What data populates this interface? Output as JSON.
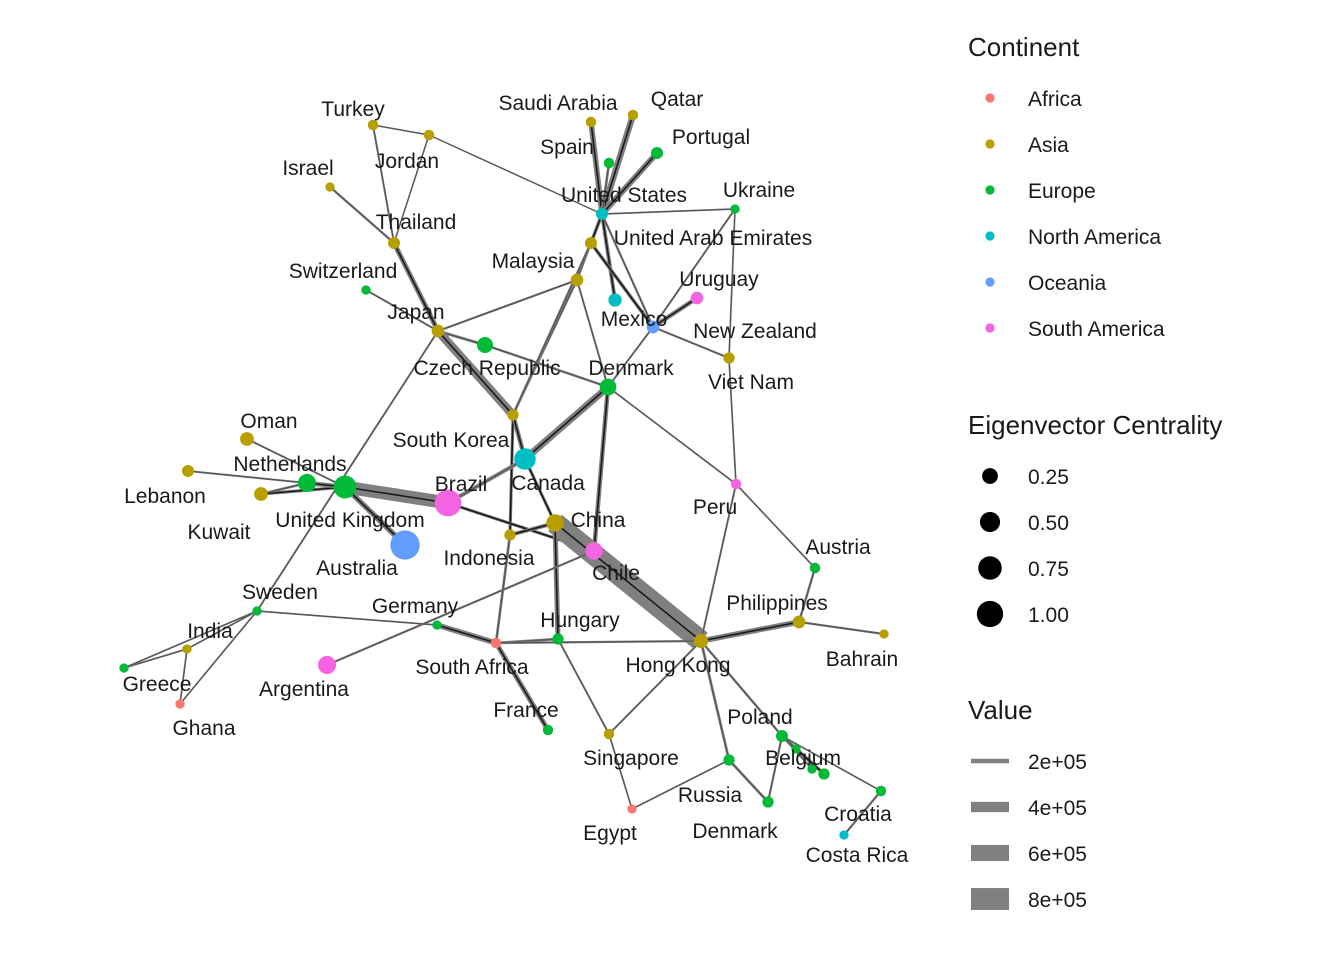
{
  "colors": {
    "Africa": "#F8766D",
    "Asia": "#B79F00",
    "Europe": "#00BA38",
    "North America": "#00BFC4",
    "Oceania": "#619CFF",
    "South America": "#F564E3"
  },
  "legend": {
    "continent": {
      "title": "Continent",
      "items": [
        "Africa",
        "Asia",
        "Europe",
        "North America",
        "Oceania",
        "South America"
      ]
    },
    "centrality": {
      "title": "Eigenvector Centrality",
      "items": [
        "0.25",
        "0.50",
        "0.75",
        "1.00"
      ]
    },
    "value": {
      "title": "Value",
      "items": [
        "2e+05",
        "4e+05",
        "6e+05",
        "8e+05"
      ]
    }
  },
  "nodes": [
    {
      "id": "turkey",
      "label": "Turkey",
      "continent": "Asia",
      "c": 0.02
    },
    {
      "id": "jordan",
      "label": "Jordan",
      "continent": "Asia",
      "c": 0.02
    },
    {
      "id": "israel",
      "label": "Israel",
      "continent": "Asia",
      "c": 0.01
    },
    {
      "id": "thailand",
      "label": "Thailand",
      "continent": "Asia",
      "c": 0.04
    },
    {
      "id": "switzerland",
      "label": "Switzerland",
      "continent": "Europe",
      "c": 0.01
    },
    {
      "id": "japan",
      "label": "Japan",
      "continent": "Asia",
      "c": 0.05
    },
    {
      "id": "czech",
      "label": "Czech Republic",
      "continent": "Europe",
      "c": 0.12
    },
    {
      "id": "malaysia",
      "label": "Malaysia",
      "continent": "Asia",
      "c": 0.05
    },
    {
      "id": "saudi",
      "label": "Saudi Arabia",
      "continent": "Asia",
      "c": 0.02
    },
    {
      "id": "qatar",
      "label": "Qatar",
      "continent": "Asia",
      "c": 0.02
    },
    {
      "id": "spain",
      "label": "Spain",
      "continent": "Europe",
      "c": 0.02
    },
    {
      "id": "portugal",
      "label": "Portugal",
      "continent": "Europe",
      "c": 0.04
    },
    {
      "id": "usa",
      "label": "United States",
      "continent": "North America",
      "c": 0.04
    },
    {
      "id": "uae",
      "label": "United Arab Emirates",
      "continent": "Asia",
      "c": 0.04
    },
    {
      "id": "ukraine",
      "label": "Ukraine",
      "continent": "Europe",
      "c": 0.01
    },
    {
      "id": "uruguay",
      "label": "Uruguay",
      "continent": "South America",
      "c": 0.05
    },
    {
      "id": "mexico",
      "label": "Mexico",
      "continent": "North America",
      "c": 0.06
    },
    {
      "id": "newzealand",
      "label": "New Zealand",
      "continent": "Oceania",
      "c": 0.05
    },
    {
      "id": "vietnam",
      "label": "Viet Nam",
      "continent": "Asia",
      "c": 0.03
    },
    {
      "id": "denmark1",
      "label": "Denmark",
      "continent": "Europe",
      "c": 0.14
    },
    {
      "id": "southkorea",
      "label": "South Korea",
      "continent": "Asia",
      "c": 0.03
    },
    {
      "id": "canada",
      "label": "Canada",
      "continent": "North America",
      "c": 0.3
    },
    {
      "id": "oman",
      "label": "Oman",
      "continent": "Asia",
      "c": 0.07
    },
    {
      "id": "netherlands",
      "label": "Netherlands",
      "continent": "Europe",
      "c": 0.18
    },
    {
      "id": "lebanon",
      "label": "Lebanon",
      "continent": "Asia",
      "c": 0.04
    },
    {
      "id": "kuwait",
      "label": "Kuwait",
      "continent": "Asia",
      "c": 0.07
    },
    {
      "id": "uk",
      "label": "United Kingdom",
      "continent": "Europe",
      "c": 0.36
    },
    {
      "id": "brazil",
      "label": "Brazil",
      "continent": "South America",
      "c": 0.55
    },
    {
      "id": "australia",
      "label": "Australia",
      "continent": "Oceania",
      "c": 0.7
    },
    {
      "id": "china",
      "label": "China",
      "continent": "Asia",
      "c": 0.16
    },
    {
      "id": "chile",
      "label": "Chile",
      "continent": "South America",
      "c": 0.16
    },
    {
      "id": "indonesia",
      "label": "Indonesia",
      "continent": "Asia",
      "c": 0.03
    },
    {
      "id": "peru",
      "label": "Peru",
      "continent": "South America",
      "c": 0.02
    },
    {
      "id": "austria",
      "label": "Austria",
      "continent": "Europe",
      "c": 0.02
    },
    {
      "id": "sweden",
      "label": "Sweden",
      "continent": "Europe",
      "c": 0.01
    },
    {
      "id": "india",
      "label": "India",
      "continent": "Asia",
      "c": 0.01
    },
    {
      "id": "greece",
      "label": "Greece",
      "continent": "Europe",
      "c": 0.01
    },
    {
      "id": "ghana",
      "label": "Ghana",
      "continent": "Africa",
      "c": 0.01
    },
    {
      "id": "argentina",
      "label": "Argentina",
      "continent": "South America",
      "c": 0.18
    },
    {
      "id": "germany",
      "label": "Germany",
      "continent": "Europe",
      "c": 0.01
    },
    {
      "id": "hungary",
      "label": "Hungary",
      "continent": "Europe",
      "c": 0.03
    },
    {
      "id": "southafrica",
      "label": "South Africa",
      "continent": "Africa",
      "c": 0.02
    },
    {
      "id": "philippines",
      "label": "Philippines",
      "continent": "Asia",
      "c": 0.05
    },
    {
      "id": "bahrain",
      "label": "Bahrain",
      "continent": "Asia",
      "c": 0.01
    },
    {
      "id": "hongkong",
      "label": "Hong Kong",
      "continent": "Asia",
      "c": 0.08
    },
    {
      "id": "france",
      "label": "France",
      "continent": "Europe",
      "c": 0.02
    },
    {
      "id": "singapore",
      "label": "Singapore",
      "continent": "Asia",
      "c": 0.02
    },
    {
      "id": "poland",
      "label": "Poland",
      "continent": "Europe",
      "c": 0.04
    },
    {
      "id": "belgium",
      "label": "Belgium",
      "continent": "Europe",
      "c": 0.03
    },
    {
      "id": "russia",
      "label": "Russia",
      "continent": "Europe",
      "c": 0.03
    },
    {
      "id": "denmark2",
      "label": "Denmark",
      "continent": "Europe",
      "c": 0.03
    },
    {
      "id": "egypt",
      "label": "Egypt",
      "continent": "Africa",
      "c": 0.01
    },
    {
      "id": "croatia",
      "label": "Croatia",
      "continent": "Europe",
      "c": 0.02
    },
    {
      "id": "costarica",
      "label": "Costa Rica",
      "continent": "North America",
      "c": 0.01
    },
    {
      "id": "n_bel2",
      "label": "",
      "continent": "Europe",
      "c": 0.01
    },
    {
      "id": "n_bel3",
      "label": "",
      "continent": "Europe",
      "c": 0.01
    }
  ],
  "edges": [
    {
      "from": "turkey",
      "to": "jordan",
      "v": 5000
    },
    {
      "from": "turkey",
      "to": "thailand",
      "v": 8000
    },
    {
      "from": "jordan",
      "to": "usa",
      "v": 4000
    },
    {
      "from": "jordan",
      "to": "thailand",
      "v": 5000
    },
    {
      "from": "israel",
      "to": "thailand",
      "v": 12000
    },
    {
      "from": "thailand",
      "to": "japan",
      "v": 50000
    },
    {
      "from": "switzerland",
      "to": "japan",
      "v": 8000
    },
    {
      "from": "japan",
      "to": "czech",
      "v": 15000
    },
    {
      "from": "japan",
      "to": "southkorea",
      "v": 150000
    },
    {
      "from": "japan",
      "to": "malaysia",
      "v": 10000
    },
    {
      "from": "japan",
      "to": "sweden",
      "v": 8000
    },
    {
      "from": "czech",
      "to": "denmark1",
      "v": 12000
    },
    {
      "from": "malaysia",
      "to": "uae",
      "v": 10000
    },
    {
      "from": "malaysia",
      "to": "southkorea",
      "v": 10000
    },
    {
      "from": "malaysia",
      "to": "denmark1",
      "v": 8000
    },
    {
      "from": "saudi",
      "to": "usa",
      "v": 60000
    },
    {
      "from": "qatar",
      "to": "usa",
      "v": 80000
    },
    {
      "from": "spain",
      "to": "usa",
      "v": 15000
    },
    {
      "from": "portugal",
      "to": "usa",
      "v": 70000
    },
    {
      "from": "usa",
      "to": "uae",
      "v": 25000
    },
    {
      "from": "usa",
      "to": "ukraine",
      "v": 6000
    },
    {
      "from": "usa",
      "to": "mexico",
      "v": 30000
    },
    {
      "from": "usa",
      "to": "newzealand",
      "v": 10000
    },
    {
      "from": "uae",
      "to": "newzealand",
      "v": 25000
    },
    {
      "from": "uae",
      "to": "southkorea",
      "v": 15000
    },
    {
      "from": "ukraine",
      "to": "newzealand",
      "v": 8000
    },
    {
      "from": "ukraine",
      "to": "vietnam",
      "v": 6000
    },
    {
      "from": "uruguay",
      "to": "newzealand",
      "v": 40000
    },
    {
      "from": "newzealand",
      "to": "vietnam",
      "v": 10000
    },
    {
      "from": "newzealand",
      "to": "denmark1",
      "v": 8000
    },
    {
      "from": "vietnam",
      "to": "peru",
      "v": 6000
    },
    {
      "from": "denmark1",
      "to": "canada",
      "v": 100000
    },
    {
      "from": "denmark1",
      "to": "chile",
      "v": 40000
    },
    {
      "from": "denmark1",
      "to": "peru",
      "v": 6000
    },
    {
      "from": "southkorea",
      "to": "indonesia",
      "v": 20000
    },
    {
      "from": "southkorea",
      "to": "canada",
      "v": 40000
    },
    {
      "from": "canada",
      "to": "brazil",
      "v": 30000
    },
    {
      "from": "canada",
      "to": "china",
      "v": 20000
    },
    {
      "from": "oman",
      "to": "uk",
      "v": 8000
    },
    {
      "from": "lebanon",
      "to": "netherlands",
      "v": 8000
    },
    {
      "from": "kuwait",
      "to": "netherlands",
      "v": 12000
    },
    {
      "from": "kuwait",
      "to": "uk",
      "v": 20000
    },
    {
      "from": "netherlands",
      "to": "uk",
      "v": 40000
    },
    {
      "from": "uk",
      "to": "brazil",
      "v": 330000
    },
    {
      "from": "uk",
      "to": "australia",
      "v": 60000
    },
    {
      "from": "brazil",
      "to": "canada",
      "v": 15000
    },
    {
      "from": "brazil",
      "to": "chile",
      "v": 20000
    },
    {
      "from": "china",
      "to": "chile",
      "v": 40000
    },
    {
      "from": "china",
      "to": "hongkong",
      "v": 900000
    },
    {
      "from": "china",
      "to": "indonesia",
      "v": 30000
    },
    {
      "from": "china",
      "to": "hungary",
      "v": 50000
    },
    {
      "from": "chile",
      "to": "argentina",
      "v": 10000
    },
    {
      "from": "indonesia",
      "to": "southafrica",
      "v": 15000
    },
    {
      "from": "peru",
      "to": "austria",
      "v": 6000
    },
    {
      "from": "peru",
      "to": "hongkong",
      "v": 8000
    },
    {
      "from": "austria",
      "to": "philippines",
      "v": 12000
    },
    {
      "from": "philippines",
      "to": "bahrain",
      "v": 10000
    },
    {
      "from": "philippines",
      "to": "hongkong",
      "v": 60000
    },
    {
      "from": "sweden",
      "to": "india",
      "v": 6000
    },
    {
      "from": "sweden",
      "to": "greece",
      "v": 6000
    },
    {
      "from": "sweden",
      "to": "ghana",
      "v": 6000
    },
    {
      "from": "sweden",
      "to": "germany",
      "v": 6000
    },
    {
      "from": "india",
      "to": "greece",
      "v": 6000
    },
    {
      "from": "india",
      "to": "ghana",
      "v": 6000
    },
    {
      "from": "germany",
      "to": "southafrica",
      "v": 60000
    },
    {
      "from": "southafrica",
      "to": "hungary",
      "v": 15000
    },
    {
      "from": "southafrica",
      "to": "france",
      "v": 50000
    },
    {
      "from": "southafrica",
      "to": "hongkong",
      "v": 10000
    },
    {
      "from": "hungary",
      "to": "singapore",
      "v": 8000
    },
    {
      "from": "singapore",
      "to": "hongkong",
      "v": 8000
    },
    {
      "from": "singapore",
      "to": "egypt",
      "v": 6000
    },
    {
      "from": "hongkong",
      "to": "russia",
      "v": 15000
    },
    {
      "from": "hongkong",
      "to": "poland",
      "v": 12000
    },
    {
      "from": "poland",
      "to": "belgium",
      "v": 25000
    },
    {
      "from": "poland",
      "to": "n_bel2",
      "v": 8000
    },
    {
      "from": "poland",
      "to": "n_bel3",
      "v": 8000
    },
    {
      "from": "poland",
      "to": "denmark2",
      "v": 10000
    },
    {
      "from": "poland",
      "to": "croatia",
      "v": 6000
    },
    {
      "from": "croatia",
      "to": "costarica",
      "v": 10000
    },
    {
      "from": "russia",
      "to": "denmark2",
      "v": 15000
    },
    {
      "from": "russia",
      "to": "egypt",
      "v": 6000
    }
  ]
}
